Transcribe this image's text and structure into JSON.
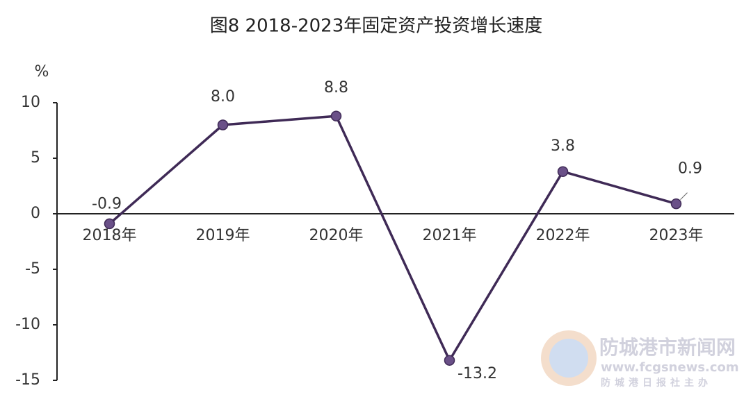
{
  "chart_data": {
    "type": "line",
    "title": "图8 2018-2023年固定资产投资增长速度",
    "y_label": "%",
    "categories": [
      "2018年",
      "2019年",
      "2020年",
      "2021年",
      "2022年",
      "2023年"
    ],
    "series": [
      {
        "color": "#3f2a56",
        "values": [
          -0.9,
          8.0,
          8.8,
          -13.2,
          3.8,
          0.9
        ],
        "value_labels": [
          "-0.9",
          "8.0",
          "8.8",
          "-13.2",
          "3.8",
          "0.9"
        ]
      }
    ],
    "ylim": [
      -15,
      10
    ],
    "yticks": [
      -15,
      -10,
      -5,
      0,
      5,
      10
    ],
    "grid": false
  },
  "watermark": {
    "name": "防城港市新闻网",
    "url": "www.fcgsnews.com",
    "sponsor": "防城港日报社主办"
  }
}
